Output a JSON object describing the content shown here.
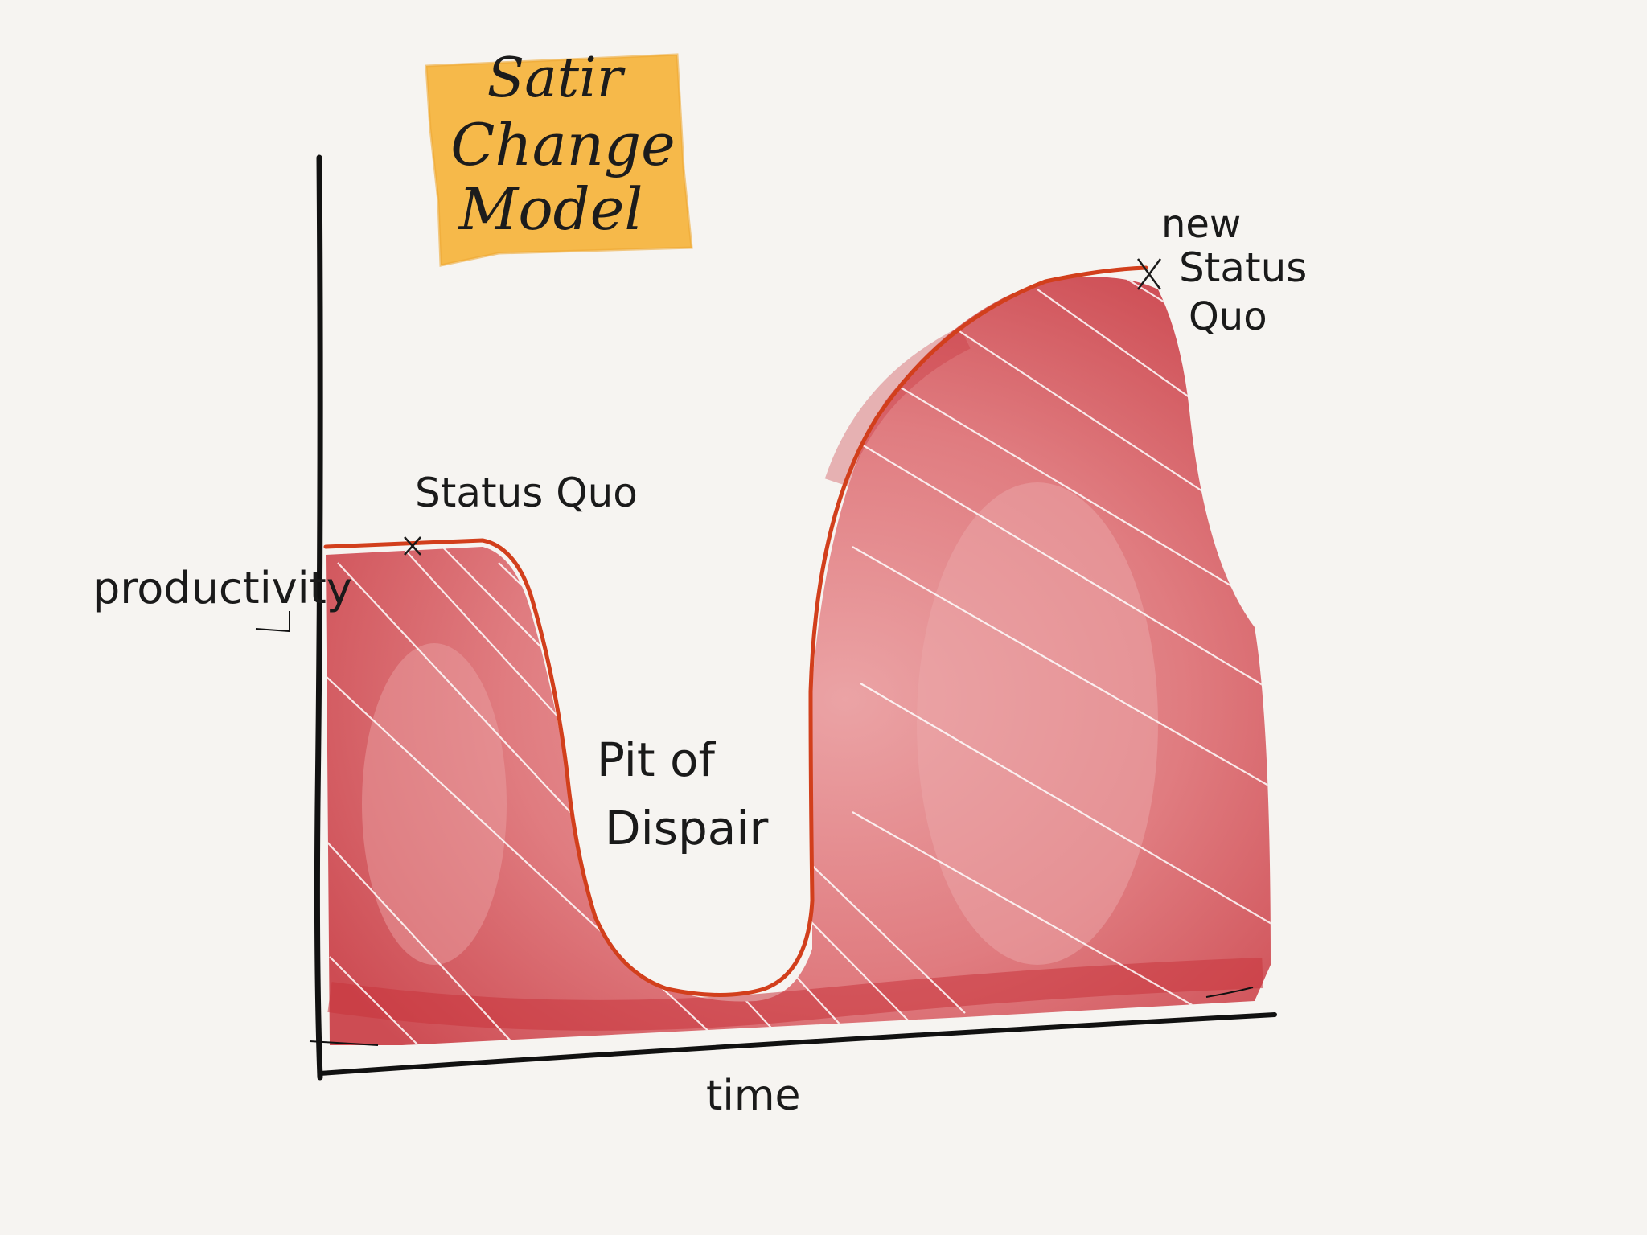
{
  "title": {
    "line1": "Satir",
    "line2": "Change",
    "line3": "Model"
  },
  "labels": {
    "y_axis": "productivity",
    "x_axis": "time",
    "status_quo": "Status Quo",
    "pit_line1": "Pit of",
    "pit_line2": "Dispair",
    "new_line1": "new",
    "new_line2": "Status",
    "new_line3": "Quo"
  },
  "colors": {
    "background": "#f6f4f1",
    "sticky_note": "#f6b94a",
    "fill": "#d9555a",
    "curve": "#d23f1c",
    "axis": "#111111",
    "hatch": "#ffffff"
  }
}
